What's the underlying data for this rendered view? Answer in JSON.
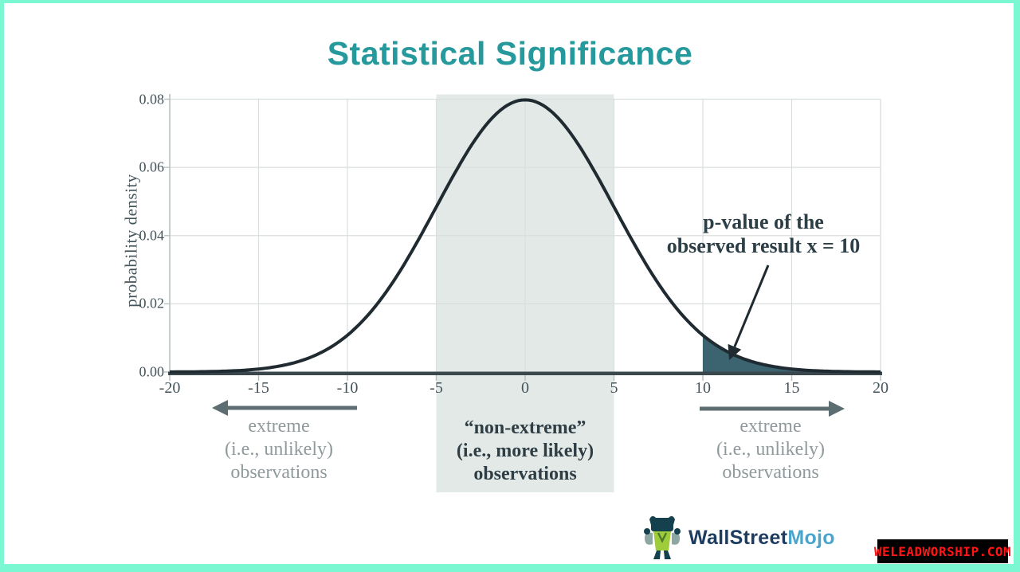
{
  "title": {
    "text": "Statistical Significance"
  },
  "annotation": {
    "line1": "p-value of the",
    "line2": "observed result x = 10"
  },
  "labels": {
    "left": {
      "l1": "extreme",
      "l2": "(i.e., unlikely)",
      "l3": "observations"
    },
    "center": {
      "l1": "“non-extreme”",
      "l2": "(i.e., more likely)",
      "l3": "observations"
    },
    "right": {
      "l1": "extreme",
      "l2": "(i.e., unlikely)",
      "l3": "observations"
    }
  },
  "logo": {
    "part1": "WallStreet",
    "part2": "Mojo"
  },
  "watermark": {
    "text": "WELEADWORSHIP.COM"
  },
  "colors": {
    "border": "#7bf8d1",
    "background": "#ffffff",
    "title": "#26999c",
    "curve": "#1f2a31",
    "axis_line": "#3a474d",
    "grid": "#d9dfde",
    "axis_edge": "#b7c1c0",
    "band": "#e3e9e7",
    "tail": "#3b6370",
    "big_arrow": "#5c6e72",
    "side_label": "#909a9d",
    "center_label": "#2f3e45",
    "tick_label": "#44545b",
    "annotation": "#2c3e46",
    "brand_navy": "#1d3c60",
    "brand_blue": "#49a5cc",
    "watermark_red": "#ff1515",
    "watermark_bg": "#000000",
    "mascot_green": "#9fcc3b",
    "mascot_dark": "#15404e"
  },
  "chart_data": {
    "type": "area",
    "title": "Statistical Significance",
    "xlabel": "",
    "ylabel": "probability density",
    "xlim": [
      -20,
      20
    ],
    "ylim": [
      0,
      0.08
    ],
    "x_ticks": [
      -20,
      -15,
      -10,
      -5,
      0,
      5,
      10,
      15,
      20
    ],
    "y_ticks": [
      0,
      0.02,
      0.04,
      0.06,
      0.08
    ],
    "y_tick_labels": [
      "0.00",
      "0.02",
      "0.04",
      "0.06",
      "0.08"
    ],
    "grid": true,
    "legend": "none",
    "curve": {
      "distribution": "normal",
      "mean": 0,
      "sigma": 5,
      "peak": 0.0798
    },
    "band": {
      "from": -5,
      "to": 5,
      "meaning": "“non-extreme” (i.e., more likely) observations"
    },
    "tail": {
      "from": 10,
      "to": 20,
      "meaning": "p-value of the observed result x = 10"
    }
  }
}
